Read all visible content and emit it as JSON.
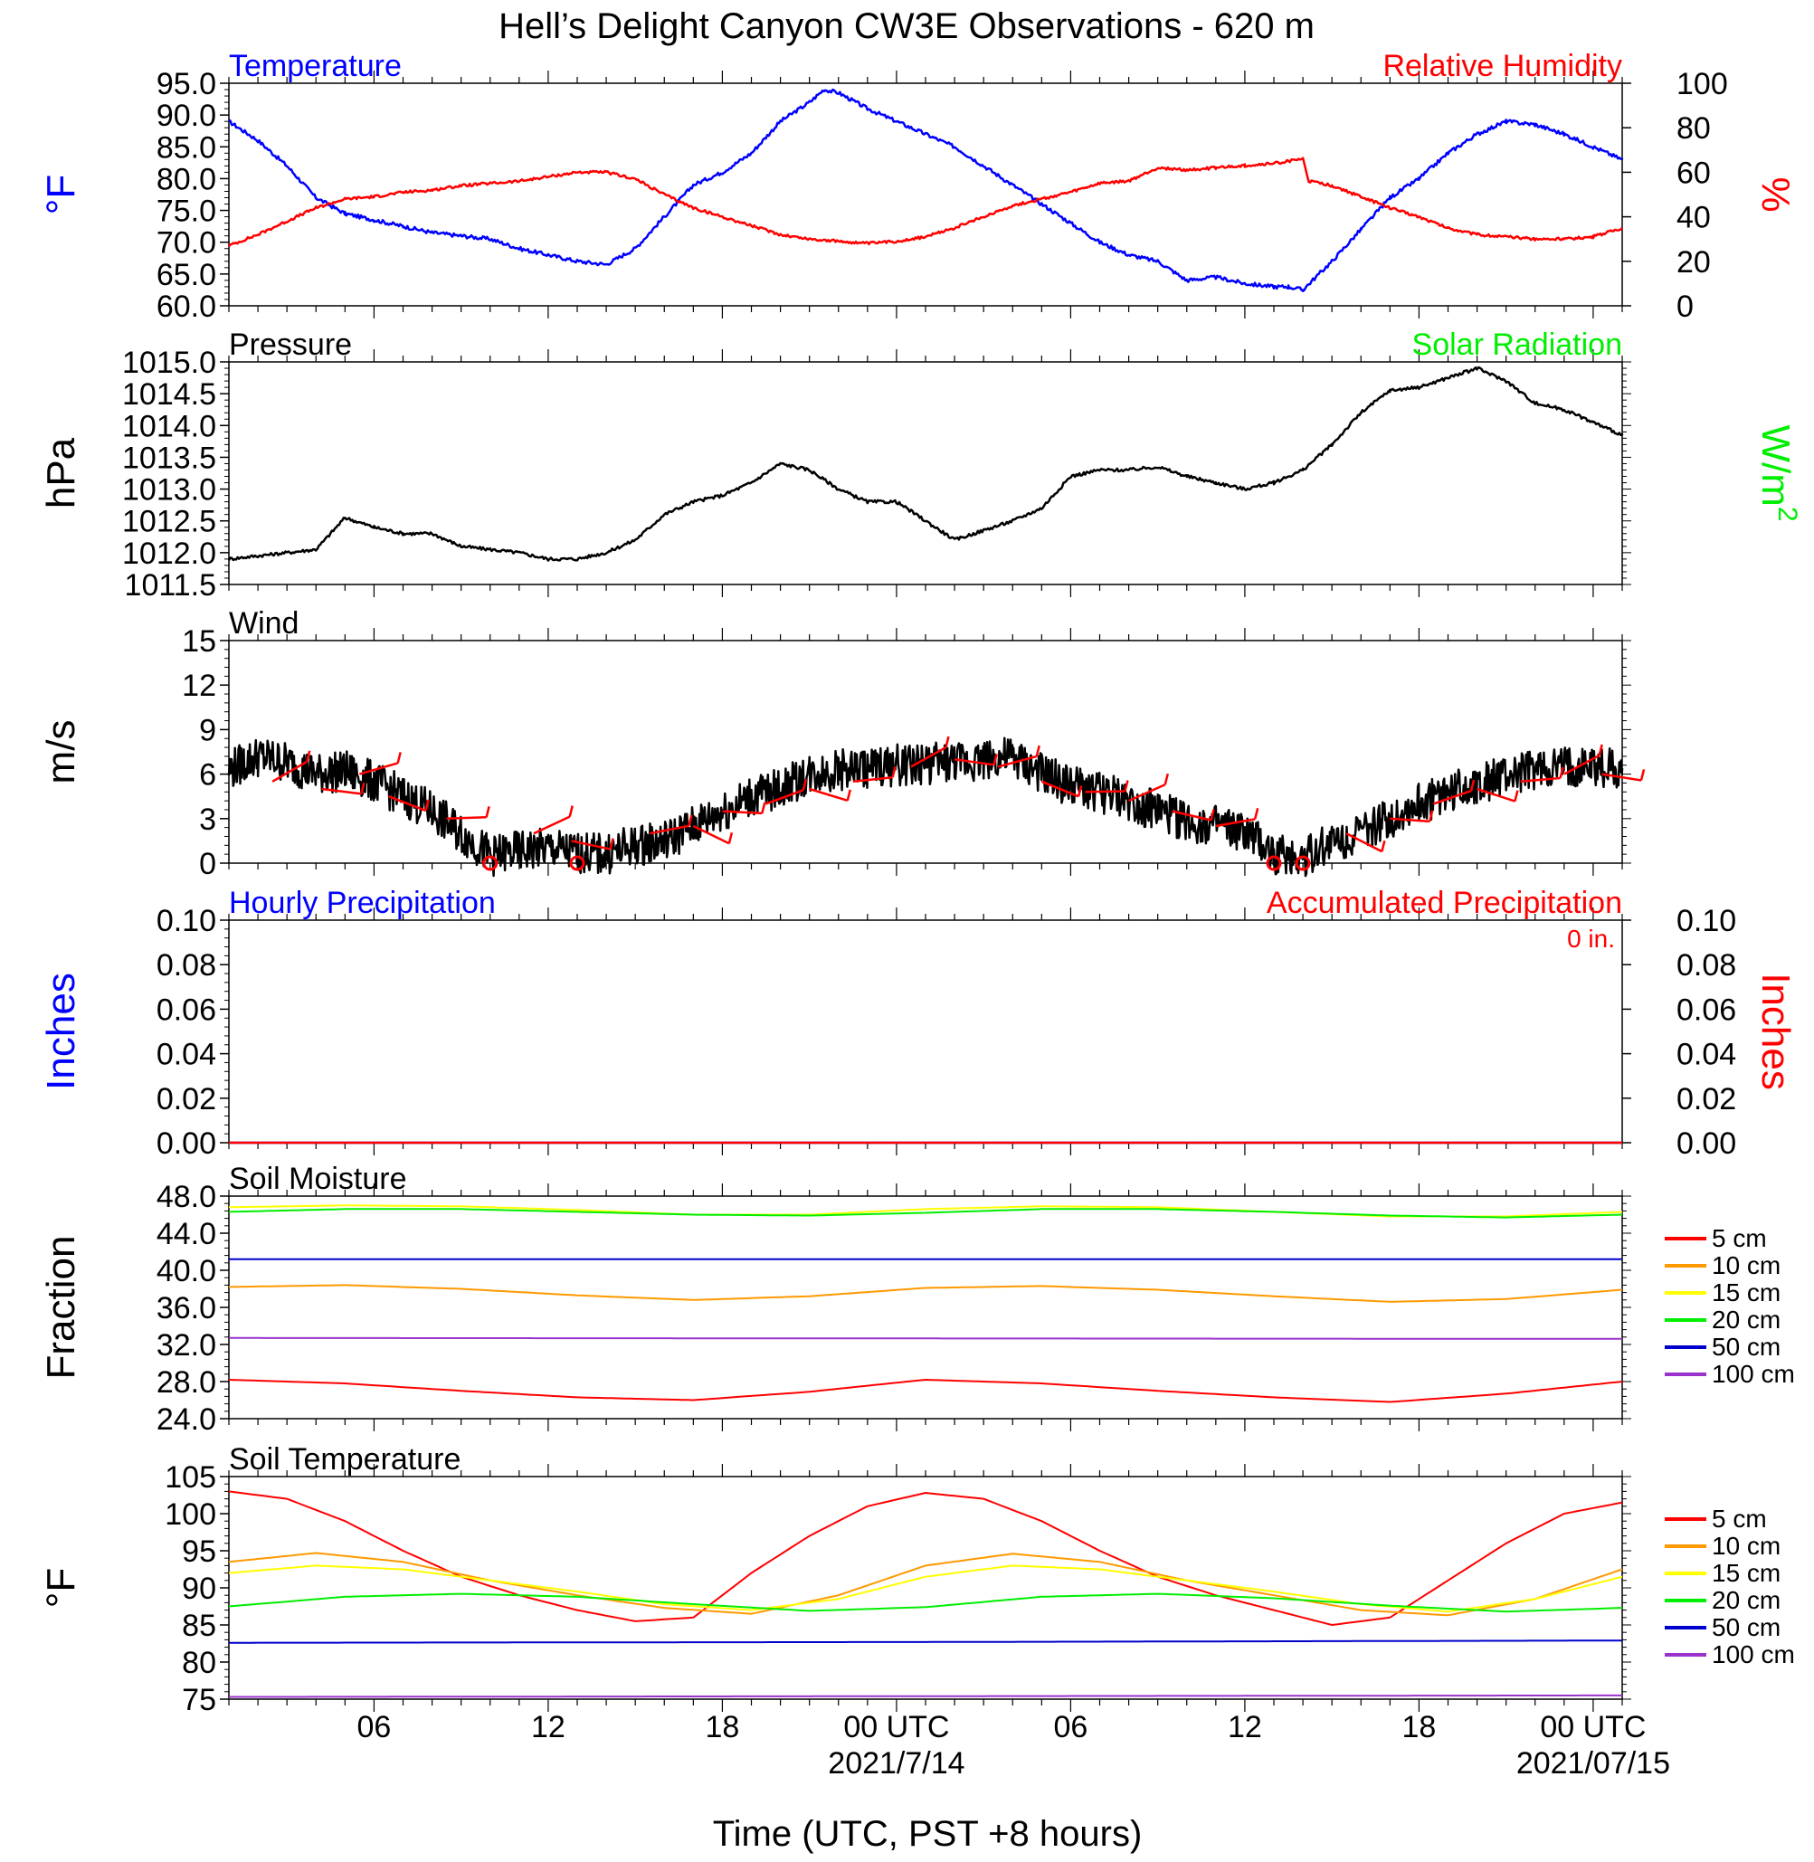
{
  "title": "Hell’s Delight Canyon CW3E Observations - 620 m",
  "xaxis": {
    "label": "Time (UTC, PST +8 hours)",
    "range_hours": [
      0,
      48
    ],
    "ticks": [
      {
        "h": 5,
        "label": "06"
      },
      {
        "h": 11,
        "label": "12"
      },
      {
        "h": 17,
        "label": "18"
      },
      {
        "h": 23,
        "label": "00 UTC",
        "date": "2021/7/14"
      },
      {
        "h": 29,
        "label": "06"
      },
      {
        "h": 35,
        "label": "12"
      },
      {
        "h": 41,
        "label": "18"
      },
      {
        "h": 47,
        "label": "00 UTC",
        "date": "2021/07/15"
      }
    ]
  },
  "colors": {
    "blue": "#0000ff",
    "red": "#ff0000",
    "green": "#00ee00",
    "black": "#000000",
    "orange": "#ff9900",
    "yellow": "#ffff00",
    "darkblue": "#0000cc",
    "purple": "#9933cc"
  },
  "chart_data": [
    {
      "type": "line",
      "id": "temp",
      "left_title": "Temperature",
      "right_title": "Relative Humidity",
      "ylabel": "°F",
      "ylabel_right": "%",
      "ylim": [
        60,
        95
      ],
      "yticks": [
        "95.0",
        "90.0",
        "85.0",
        "80.0",
        "75.0",
        "70.0",
        "65.0",
        "60.0"
      ],
      "ylim_right": [
        0,
        100
      ],
      "yticks_right": [
        "100",
        "80",
        "60",
        "40",
        "20",
        "0"
      ],
      "series": [
        {
          "axis": "left",
          "color": "#0000ff",
          "x": [
            0,
            1,
            2,
            3,
            4,
            5,
            6,
            7,
            8,
            9,
            10,
            11,
            12,
            13,
            14,
            15,
            16,
            17,
            18,
            19,
            20,
            20.5,
            21,
            22,
            23,
            24,
            25,
            26,
            27,
            28,
            29,
            30,
            31,
            32,
            33,
            34,
            35,
            36,
            36.5,
            37,
            38,
            39,
            40,
            41,
            42,
            43,
            44,
            45,
            46,
            47,
            48
          ],
          "y": [
            89,
            86,
            82,
            77,
            74.5,
            73.5,
            72.5,
            71.5,
            71,
            70.5,
            69,
            68,
            67,
            66.5,
            69,
            74,
            79,
            81,
            84,
            89,
            92,
            94,
            93.5,
            91,
            89,
            87,
            85,
            82,
            79,
            76,
            73,
            70,
            68,
            67,
            64,
            64.5,
            63.5,
            63,
            63,
            62.5,
            67,
            72,
            77,
            80,
            84,
            87,
            89,
            88.5,
            87,
            85,
            83
          ]
        },
        {
          "axis": "right",
          "color": "#ff0000",
          "x": [
            0,
            1,
            2,
            3,
            4,
            5,
            6,
            7,
            8,
            9,
            10,
            11,
            12,
            13,
            14,
            15,
            16,
            17,
            18,
            19,
            20,
            21,
            22,
            23,
            24,
            25,
            26,
            27,
            28,
            29,
            30,
            31,
            32,
            33,
            34,
            35,
            36,
            37,
            37.2,
            38,
            39,
            40,
            41,
            42,
            43,
            44,
            45,
            46,
            47,
            48
          ],
          "y": [
            27,
            32,
            38,
            44,
            48,
            49,
            51,
            52,
            54,
            55,
            56,
            58,
            60,
            60,
            57,
            50,
            44,
            40,
            36,
            32,
            30,
            29,
            28,
            29,
            31,
            35,
            40,
            45,
            48,
            51,
            55,
            56,
            62,
            61,
            62,
            63,
            64,
            66,
            56,
            54,
            49,
            44,
            40,
            35,
            32,
            31,
            30,
            30,
            31,
            35
          ]
        }
      ]
    },
    {
      "type": "line",
      "id": "pressure",
      "left_title": "Pressure",
      "right_title": "Solar Radiation",
      "ylabel": "hPa",
      "ylabel_right": "W/m",
      "ylabel_right_sup": "2",
      "ylim": [
        1011.5,
        1015.0
      ],
      "yticks": [
        "1015.0",
        "1014.5",
        "1014.0",
        "1013.5",
        "1013.0",
        "1012.5",
        "1012.0",
        "1011.5"
      ],
      "series": [
        {
          "color": "#000000",
          "x": [
            0,
            1,
            2,
            3,
            4,
            5,
            6,
            7,
            8,
            9,
            10,
            11,
            12,
            13,
            14,
            15,
            16,
            17,
            18,
            19,
            20,
            21,
            22,
            23,
            24,
            25,
            26,
            27,
            28,
            29,
            30,
            31,
            32,
            33,
            34,
            35,
            36,
            37,
            38,
            39,
            40,
            41,
            42,
            43,
            44,
            45,
            46,
            47,
            48
          ],
          "y": [
            1011.9,
            1011.95,
            1012.0,
            1012.05,
            1012.55,
            1012.4,
            1012.3,
            1012.3,
            1012.1,
            1012.05,
            1012.0,
            1011.9,
            1011.9,
            1012.0,
            1012.2,
            1012.6,
            1012.8,
            1012.9,
            1013.1,
            1013.4,
            1013.3,
            1013.0,
            1012.8,
            1012.8,
            1012.5,
            1012.2,
            1012.35,
            1012.5,
            1012.7,
            1013.2,
            1013.3,
            1013.3,
            1013.35,
            1013.2,
            1013.1,
            1013.0,
            1013.1,
            1013.3,
            1013.7,
            1014.2,
            1014.55,
            1014.6,
            1014.75,
            1014.9,
            1014.7,
            1014.35,
            1014.25,
            1014.05,
            1013.85
          ]
        }
      ]
    },
    {
      "type": "line",
      "id": "wind",
      "left_title": "Wind",
      "ylabel": "m/s",
      "ylim": [
        0,
        15
      ],
      "yticks": [
        "15",
        "12",
        "9",
        "6",
        "3",
        "0"
      ],
      "series": [
        {
          "color": "#000000",
          "x": [
            0,
            1,
            2,
            3,
            4,
            5,
            6,
            7,
            8,
            9,
            10,
            11,
            12,
            13,
            14,
            15,
            16,
            17,
            18,
            19,
            20,
            21,
            22,
            23,
            24,
            25,
            26,
            27,
            28,
            29,
            30,
            31,
            32,
            33,
            34,
            35,
            36,
            37,
            38,
            39,
            40,
            41,
            42,
            43,
            44,
            45,
            46,
            47,
            48
          ],
          "y": [
            6.3,
            7.2,
            6.8,
            6.0,
            6.2,
            5.5,
            4.5,
            3.5,
            2.0,
            0.5,
            0.8,
            1.0,
            0.7,
            0.6,
            1.2,
            1.5,
            2.5,
            3.5,
            4.5,
            5.0,
            6.0,
            6.3,
            6.4,
            6.6,
            6.7,
            6.8,
            7.0,
            7.1,
            6.0,
            5.2,
            4.8,
            4.2,
            3.5,
            2.8,
            2.5,
            2.0,
            0.6,
            0.4,
            1.5,
            2.0,
            3.0,
            4.0,
            4.8,
            5.4,
            5.8,
            6.2,
            6.4,
            6.5,
            6.4
          ]
        }
      ],
      "calm_markers_h": [
        9,
        12,
        36,
        37
      ],
      "barbs": [
        {
          "h": 1.5,
          "s": 5.5
        },
        {
          "h": 3.2,
          "s": 5.0
        },
        {
          "h": 4.5,
          "s": 6.0
        },
        {
          "h": 5.5,
          "s": 4.5
        },
        {
          "h": 7.5,
          "s": 3.0
        },
        {
          "h": 10.5,
          "s": 2.0
        },
        {
          "h": 11.8,
          "s": 1.5
        },
        {
          "h": 14.5,
          "s": 2.0
        },
        {
          "h": 16.0,
          "s": 2.5
        },
        {
          "h": 17.0,
          "s": 3.5
        },
        {
          "h": 18.5,
          "s": 4.0
        },
        {
          "h": 20.0,
          "s": 5.0
        },
        {
          "h": 21.5,
          "s": 5.5
        },
        {
          "h": 23.5,
          "s": 6.5
        },
        {
          "h": 25.0,
          "s": 7.0
        },
        {
          "h": 26.5,
          "s": 6.5
        },
        {
          "h": 28.0,
          "s": 5.5
        },
        {
          "h": 29.5,
          "s": 4.8
        },
        {
          "h": 31.0,
          "s": 4.2
        },
        {
          "h": 32.5,
          "s": 3.5
        },
        {
          "h": 34.0,
          "s": 2.5
        },
        {
          "h": 38.5,
          "s": 2.0
        },
        {
          "h": 40.0,
          "s": 3.0
        },
        {
          "h": 41.5,
          "s": 4.0
        },
        {
          "h": 43.0,
          "s": 5.0
        },
        {
          "h": 44.5,
          "s": 5.5
        },
        {
          "h": 46.0,
          "s": 6.0
        },
        {
          "h": 47.3,
          "s": 6.0
        }
      ]
    },
    {
      "type": "line",
      "id": "precip",
      "left_title": "Hourly Precipitation",
      "right_title": "Accumulated Precipitation",
      "annotation": "0 in.",
      "ylabel": "Inches",
      "ylabel_right": "Inches",
      "ylim": [
        0,
        0.1
      ],
      "yticks": [
        "0.10",
        "0.08",
        "0.06",
        "0.04",
        "0.02",
        "0.00"
      ],
      "ylim_right": [
        0,
        0.1
      ],
      "yticks_right": [
        "0.10",
        "0.08",
        "0.06",
        "0.04",
        "0.02",
        "0.00"
      ],
      "series": [
        {
          "axis": "left",
          "color": "#0000ff",
          "x": [
            0,
            48
          ],
          "y": [
            0,
            0
          ]
        },
        {
          "axis": "right",
          "color": "#ff0000",
          "x": [
            0,
            48
          ],
          "y": [
            0,
            0
          ]
        }
      ]
    },
    {
      "type": "line",
      "id": "soilm",
      "left_title": "Soil Moisture",
      "ylabel": "Fraction",
      "ylim": [
        24,
        48
      ],
      "yticks": [
        "48.0",
        "44.0",
        "40.0",
        "36.0",
        "32.0",
        "28.0",
        "24.0"
      ],
      "legend": [
        "5 cm",
        "10 cm",
        "15 cm",
        "20 cm",
        "50 cm",
        "100 cm"
      ],
      "series": [
        {
          "name": "5 cm",
          "color": "#ff0000",
          "x": [
            0,
            4,
            8,
            12,
            16,
            20,
            24,
            28,
            32,
            36,
            40,
            44,
            48
          ],
          "y": [
            28.2,
            27.8,
            27.0,
            26.3,
            26.0,
            26.9,
            28.2,
            27.8,
            27.0,
            26.3,
            25.8,
            26.7,
            28.0
          ]
        },
        {
          "name": "10 cm",
          "color": "#ff9900",
          "x": [
            0,
            4,
            8,
            12,
            16,
            20,
            24,
            28,
            32,
            36,
            40,
            44,
            48
          ],
          "y": [
            38.2,
            38.4,
            38.0,
            37.3,
            36.8,
            37.2,
            38.1,
            38.3,
            37.9,
            37.2,
            36.6,
            36.9,
            37.9
          ]
        },
        {
          "name": "15 cm",
          "color": "#ffff00",
          "x": [
            0,
            4,
            8,
            12,
            16,
            20,
            24,
            28,
            32,
            36,
            40,
            44,
            48
          ],
          "y": [
            46.8,
            47.0,
            46.9,
            46.5,
            46.0,
            46.0,
            46.6,
            46.9,
            46.8,
            46.3,
            45.8,
            45.8,
            46.3
          ]
        },
        {
          "name": "20 cm",
          "color": "#00ee00",
          "x": [
            0,
            4,
            8,
            12,
            16,
            20,
            24,
            28,
            32,
            36,
            40,
            44,
            48
          ],
          "y": [
            46.3,
            46.6,
            46.6,
            46.3,
            46.0,
            45.9,
            46.2,
            46.6,
            46.6,
            46.3,
            45.9,
            45.7,
            46.0
          ]
        },
        {
          "name": "50 cm",
          "color": "#0000cc",
          "x": [
            0,
            48
          ],
          "y": [
            41.2,
            41.2
          ]
        },
        {
          "name": "100 cm",
          "color": "#9933cc",
          "x": [
            0,
            48
          ],
          "y": [
            32.7,
            32.6
          ]
        }
      ]
    },
    {
      "type": "line",
      "id": "soilt",
      "left_title": "Soil Temperature",
      "ylabel": "°F",
      "ylim": [
        75,
        105
      ],
      "yticks": [
        "105",
        "100",
        "95",
        "90",
        "85",
        "80",
        "75"
      ],
      "legend": [
        "5 cm",
        "10 cm",
        "15 cm",
        "20 cm",
        "50 cm",
        "100 cm"
      ],
      "series": [
        {
          "name": "5 cm",
          "color": "#ff0000",
          "x": [
            0,
            2,
            4,
            6,
            8,
            10,
            12,
            14,
            16,
            18,
            20,
            22,
            24,
            26,
            28,
            30,
            32,
            34,
            36,
            38,
            40,
            42,
            44,
            46,
            48
          ],
          "y": [
            103,
            102,
            99,
            95,
            91.5,
            89,
            87,
            85.5,
            86,
            92,
            97,
            101,
            102.8,
            102,
            99,
            95,
            91.5,
            89,
            87,
            85,
            86,
            91,
            96,
            100,
            101.5
          ]
        },
        {
          "name": "10 cm",
          "color": "#ff9900",
          "x": [
            0,
            3,
            6,
            9,
            12,
            15,
            18,
            21,
            24,
            27,
            30,
            33,
            36,
            39,
            42,
            45,
            48
          ],
          "y": [
            93.5,
            94.7,
            93.5,
            91,
            89,
            87.3,
            86.5,
            89,
            93,
            94.6,
            93.5,
            91,
            89,
            87,
            86.3,
            88.5,
            92.5
          ]
        },
        {
          "name": "15 cm",
          "color": "#ffff00",
          "x": [
            0,
            3,
            6,
            9,
            12,
            15,
            18,
            21,
            24,
            27,
            30,
            33,
            36,
            39,
            42,
            45,
            48
          ],
          "y": [
            92,
            93,
            92.5,
            91,
            89.5,
            87.8,
            87,
            88.5,
            91.5,
            93,
            92.5,
            91,
            89.5,
            87.8,
            86.8,
            88.5,
            91.5
          ]
        },
        {
          "name": "20 cm",
          "color": "#00ee00",
          "x": [
            0,
            4,
            8,
            12,
            16,
            20,
            24,
            28,
            32,
            36,
            40,
            44,
            48
          ],
          "y": [
            87.5,
            88.8,
            89.2,
            88.8,
            87.8,
            86.9,
            87.4,
            88.8,
            89.2,
            88.6,
            87.6,
            86.8,
            87.3
          ]
        },
        {
          "name": "50 cm",
          "color": "#0000cc",
          "x": [
            0,
            24,
            48
          ],
          "y": [
            82.6,
            82.7,
            82.9
          ]
        },
        {
          "name": "100 cm",
          "color": "#9933cc",
          "x": [
            0,
            24,
            48
          ],
          "y": [
            75.3,
            75.4,
            75.5
          ]
        }
      ]
    }
  ]
}
